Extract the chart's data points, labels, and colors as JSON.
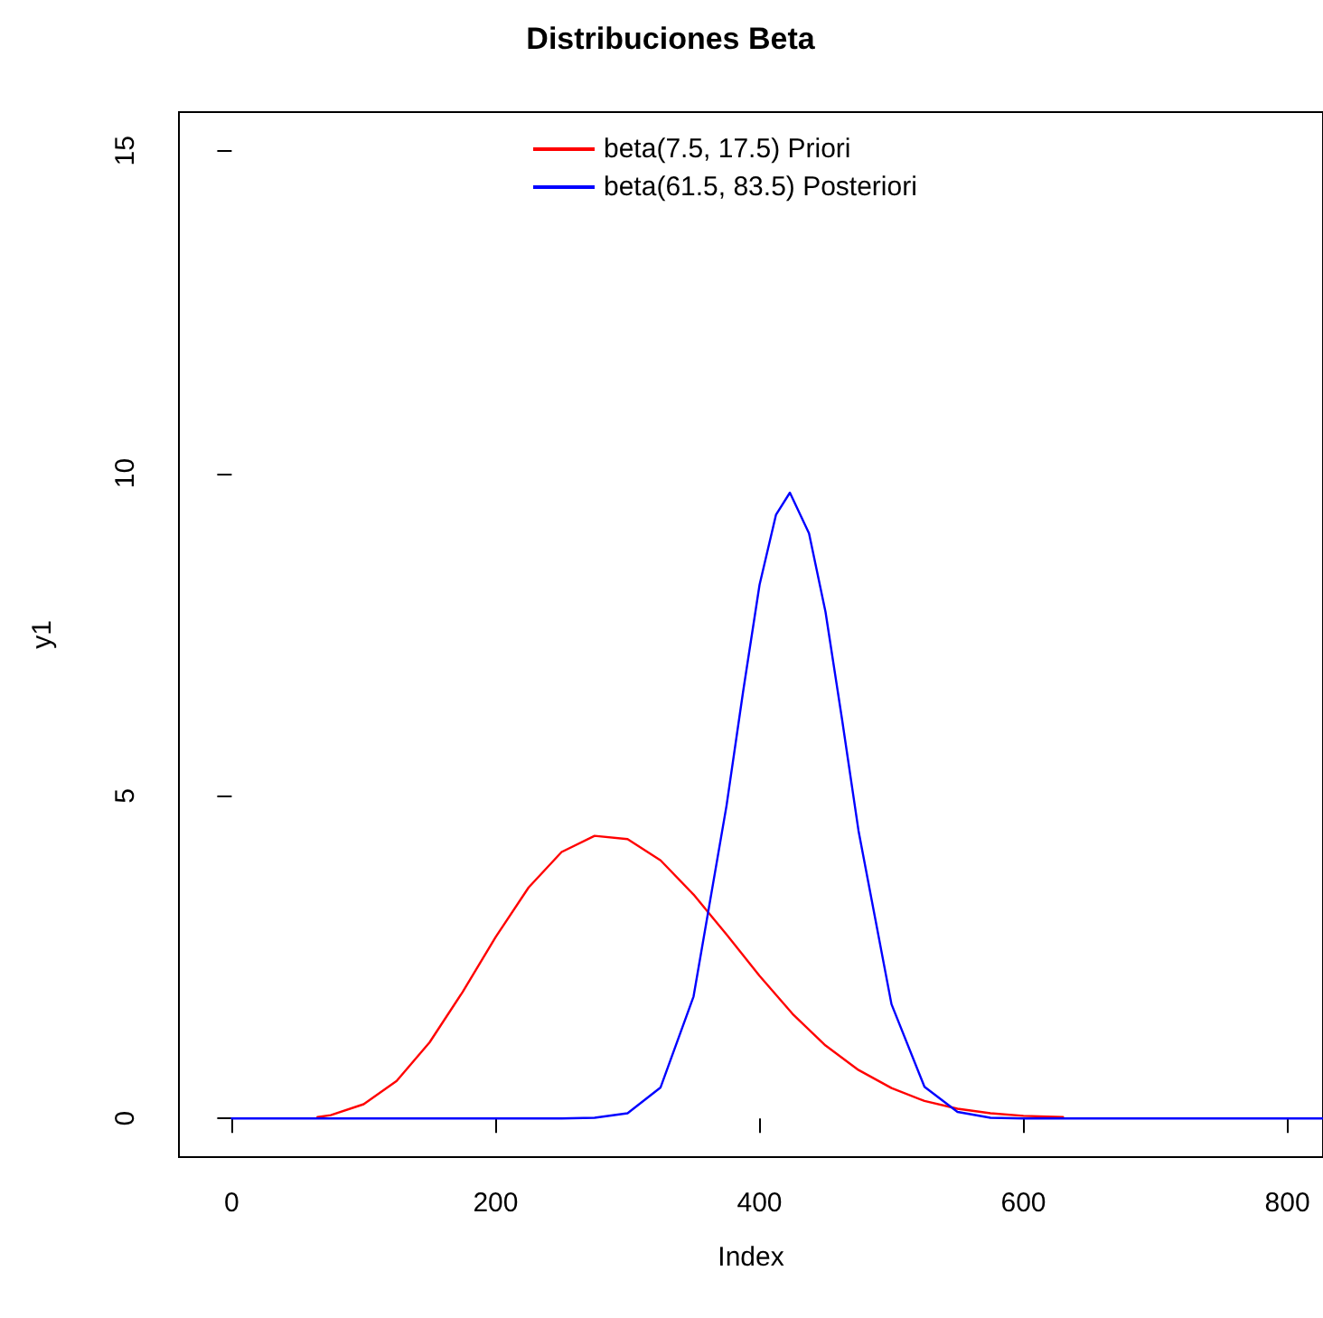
{
  "chart_data": {
    "type": "line",
    "title": "Distribuciones Beta",
    "xlabel": "Index",
    "ylabel": "y1",
    "xlim": [
      -40,
      827
    ],
    "xticks": [
      0,
      200,
      400,
      600,
      800
    ],
    "ylim": [
      -0.6,
      15.6
    ],
    "yticks": [
      0,
      5,
      10,
      15
    ],
    "grid": false,
    "legend": "top",
    "marker": "none",
    "line_style": "solid",
    "series": [
      {
        "name": "beta(7.5, 17.5) Priori",
        "color": "#ff0000",
        "x": [
          65,
          75,
          100,
          125,
          150,
          175,
          200,
          225,
          250,
          275,
          300,
          325,
          350,
          375,
          400,
          425,
          450,
          475,
          500,
          525,
          550,
          575,
          600,
          630
        ],
        "values": [
          0.02,
          0.05,
          0.22,
          0.58,
          1.18,
          1.96,
          2.81,
          3.58,
          4.13,
          4.38,
          4.33,
          4.0,
          3.47,
          2.85,
          2.21,
          1.62,
          1.13,
          0.75,
          0.47,
          0.27,
          0.15,
          0.08,
          0.04,
          0.02
        ]
      },
      {
        "name": "beta(61.5, 83.5) Posteriori",
        "color": "#0000ff",
        "x": [
          0,
          250,
          275,
          300,
          325,
          350,
          375,
          387.5,
          400,
          412.5,
          423,
          437.5,
          450,
          462.5,
          475,
          500,
          525,
          550,
          575,
          600,
          827
        ],
        "values": [
          0,
          0,
          0.01,
          0.08,
          0.48,
          1.89,
          4.85,
          6.61,
          8.27,
          9.36,
          9.7,
          9.07,
          7.85,
          6.19,
          4.46,
          1.77,
          0.49,
          0.1,
          0.01,
          0,
          0
        ]
      }
    ]
  }
}
